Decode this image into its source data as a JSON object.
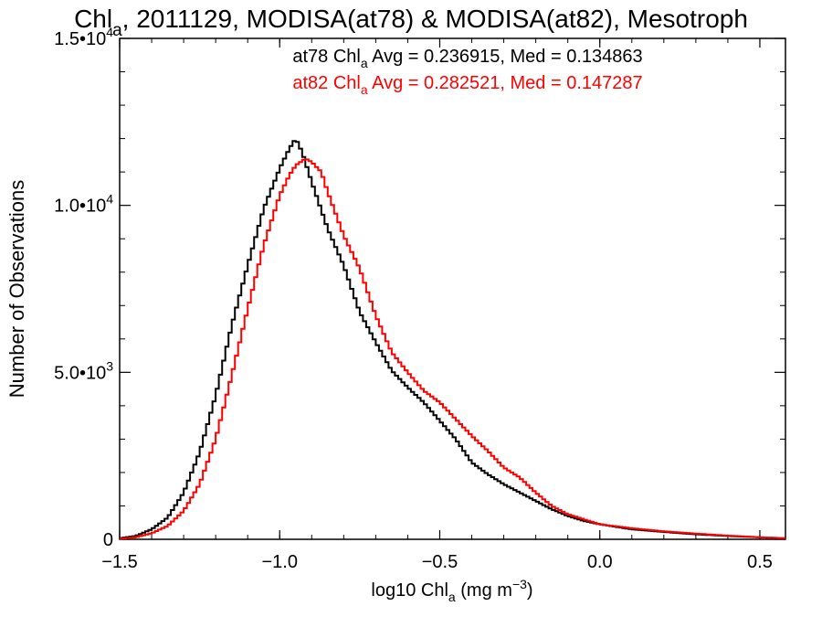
{
  "chart_data": {
    "type": "line",
    "title": {
      "pre": "Chl",
      "sub": "a",
      "post": ", 2011129, MODISA(at78) & MODISA(at82), Mesotroph"
    },
    "xlabel": {
      "pre": "log10 Chl",
      "sub": "a",
      "mid": " (mg m",
      "sup": "−3",
      "post": ")"
    },
    "ylabel": "Number of Observations",
    "xlim": [
      -1.5,
      0.58
    ],
    "ylim": [
      0,
      15000
    ],
    "xticks": [
      {
        "value": -1.5,
        "label": "−1.5"
      },
      {
        "value": -1.0,
        "label": "−1.0"
      },
      {
        "value": -0.5,
        "label": "−0.5"
      },
      {
        "value": 0.0,
        "label": "0.0"
      },
      {
        "value": 0.5,
        "label": "0.5"
      }
    ],
    "yticks": [
      {
        "value": 0,
        "label": "0",
        "mantissa": "",
        "exp": ""
      },
      {
        "value": 5000,
        "label": "",
        "mantissa": "5.0•10",
        "exp": "3"
      },
      {
        "value": 10000,
        "label": "",
        "mantissa": "1.0•10",
        "exp": "4"
      },
      {
        "value": 15000,
        "label": "",
        "mantissa": "1.5•10",
        "exp": "4"
      }
    ],
    "annotations": [
      {
        "pre": "at78 Chl",
        "sub": "a",
        "post": " Avg = 0.236915, Med = 0.134863",
        "color": "#000000"
      },
      {
        "pre": "at82 Chl",
        "sub": "a",
        "post": " Avg = 0.282521, Med = 0.147287",
        "color": "#ff0000"
      }
    ],
    "series": [
      {
        "color": "#000000",
        "x": [
          -1.5,
          -1.45,
          -1.4,
          -1.35,
          -1.3,
          -1.25,
          -1.2,
          -1.15,
          -1.1,
          -1.05,
          -1.0,
          -0.97,
          -0.95,
          -0.93,
          -0.9,
          -0.85,
          -0.8,
          -0.75,
          -0.7,
          -0.65,
          -0.6,
          -0.55,
          -0.5,
          -0.45,
          -0.4,
          -0.35,
          -0.3,
          -0.25,
          -0.2,
          -0.15,
          -0.1,
          -0.05,
          0.0,
          0.1,
          0.2,
          0.3,
          0.4,
          0.5,
          0.58
        ],
        "y": [
          30,
          100,
          300,
          650,
          1400,
          2600,
          4300,
          6400,
          8200,
          9900,
          11100,
          11700,
          12000,
          11600,
          10700,
          9300,
          8200,
          6800,
          5900,
          5050,
          4550,
          4100,
          3550,
          3000,
          2300,
          1950,
          1650,
          1400,
          1150,
          900,
          700,
          550,
          450,
          300,
          220,
          150,
          100,
          60,
          30
        ]
      },
      {
        "color": "#ff0000",
        "x": [
          -1.5,
          -1.45,
          -1.4,
          -1.35,
          -1.3,
          -1.25,
          -1.2,
          -1.15,
          -1.1,
          -1.05,
          -1.0,
          -0.97,
          -0.95,
          -0.92,
          -0.9,
          -0.87,
          -0.85,
          -0.8,
          -0.75,
          -0.7,
          -0.65,
          -0.6,
          -0.55,
          -0.5,
          -0.45,
          -0.4,
          -0.35,
          -0.3,
          -0.25,
          -0.2,
          -0.15,
          -0.1,
          -0.05,
          0.0,
          0.1,
          0.2,
          0.3,
          0.4,
          0.5,
          0.58
        ],
        "y": [
          15,
          60,
          180,
          400,
          850,
          1650,
          3000,
          4900,
          6900,
          8800,
          10300,
          10900,
          11200,
          11400,
          11300,
          11000,
          10400,
          9100,
          8100,
          6700,
          5600,
          5000,
          4450,
          4100,
          3600,
          3100,
          2650,
          2150,
          1850,
          1400,
          1000,
          750,
          600,
          450,
          330,
          240,
          170,
          110,
          60,
          30
        ]
      }
    ],
    "grid": false,
    "legend": "none"
  }
}
